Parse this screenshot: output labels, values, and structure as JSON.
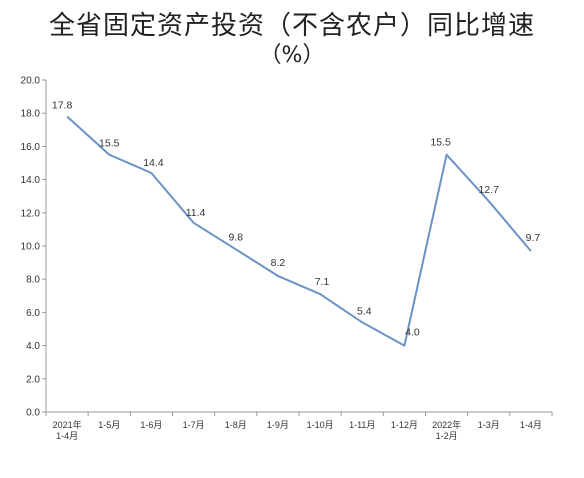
{
  "chart_data": {
    "type": "line",
    "title_line1": "全省固定资产投资（不含农户）同比增速",
    "title_line2": "（%）",
    "xlabel": "",
    "ylabel": "",
    "ylim": [
      0,
      20
    ],
    "yticks": [
      "0.0",
      "2.0",
      "4.0",
      "6.0",
      "8.0",
      "10.0",
      "12.0",
      "14.0",
      "16.0",
      "18.0",
      "20.0"
    ],
    "categories": [
      [
        "2021年",
        "1-4月"
      ],
      [
        "1-5月"
      ],
      [
        "1-6月"
      ],
      [
        "1-7月"
      ],
      [
        "1-8月"
      ],
      [
        "1-9月"
      ],
      [
        "1-10月"
      ],
      [
        "1-11月"
      ],
      [
        "1-12月"
      ],
      [
        "2022年",
        "1-2月"
      ],
      [
        "1-3月"
      ],
      [
        "1-4月"
      ]
    ],
    "series": [
      {
        "values": [
          17.8,
          15.5,
          14.4,
          11.4,
          9.8,
          8.2,
          7.1,
          5.4,
          4.0,
          15.5,
          12.7,
          9.7
        ],
        "labels": [
          "17.8",
          "15.5",
          "14.4",
          "11.4",
          "9.8",
          "8.2",
          "7.1",
          "5.4",
          "4.0",
          "15.5",
          "12.7",
          "9.7"
        ],
        "color": "#6b93c4"
      }
    ],
    "grid": false,
    "legend": "none"
  }
}
